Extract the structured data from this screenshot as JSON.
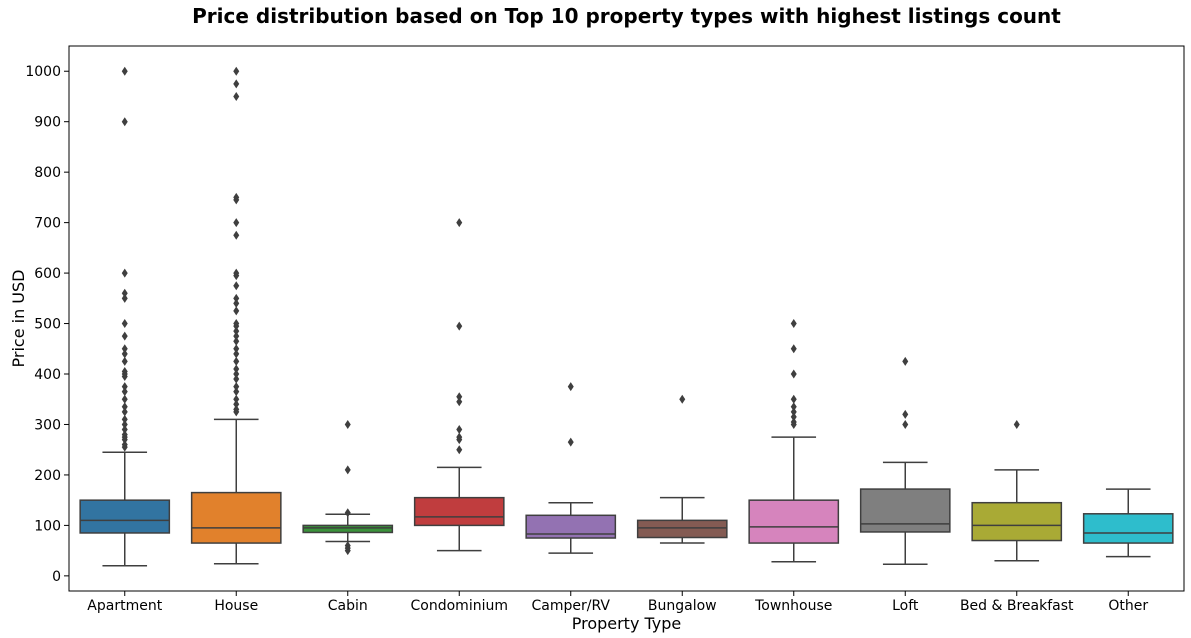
{
  "chart_data": {
    "type": "box",
    "title": "Price distribution based on Top 10 property types with highest listings count",
    "xlabel": "Property Type",
    "ylabel": "Price in USD",
    "ylim": [
      -30,
      1050
    ],
    "yticks": [
      0,
      100,
      200,
      300,
      400,
      500,
      600,
      700,
      800,
      900,
      1000
    ],
    "grid": false,
    "categories": [
      "Apartment",
      "House",
      "Cabin",
      "Condominium",
      "Camper/RV",
      "Bungalow",
      "Townhouse",
      "Loft",
      "Bed & Breakfast",
      "Other"
    ],
    "series": [
      {
        "category": "Apartment",
        "color": "#3274a1",
        "whisker_low": 20,
        "q1": 85,
        "median": 110,
        "q3": 150,
        "whisker_high": 245,
        "outliers": [
          1000,
          900,
          600,
          560,
          550,
          500,
          475,
          450,
          440,
          425,
          405,
          400,
          395,
          375,
          365,
          350,
          335,
          325,
          310,
          300,
          290,
          280,
          275,
          270,
          260,
          255
        ]
      },
      {
        "category": "House",
        "color": "#e1812c",
        "whisker_low": 24,
        "q1": 65,
        "median": 95,
        "q3": 165,
        "whisker_high": 310,
        "outliers": [
          1000,
          975,
          950,
          750,
          745,
          700,
          675,
          600,
          595,
          575,
          550,
          540,
          525,
          500,
          495,
          485,
          475,
          465,
          450,
          440,
          425,
          410,
          400,
          390,
          375,
          365,
          350,
          340,
          330,
          325
        ]
      },
      {
        "category": "Cabin",
        "color": "#3a923a",
        "whisker_low": 68,
        "q1": 86,
        "median": 95,
        "q3": 100,
        "whisker_high": 122,
        "outliers": [
          300,
          210,
          125,
          60,
          55,
          50
        ]
      },
      {
        "category": "Condominium",
        "color": "#c03d3e",
        "whisker_low": 50,
        "q1": 100,
        "median": 117,
        "q3": 155,
        "whisker_high": 215,
        "outliers": [
          700,
          495,
          355,
          345,
          290,
          275,
          270,
          250
        ]
      },
      {
        "category": "Camper/RV",
        "color": "#9372b2",
        "whisker_low": 45,
        "q1": 75,
        "median": 83,
        "q3": 120,
        "whisker_high": 145,
        "outliers": [
          375,
          265
        ]
      },
      {
        "category": "Bungalow",
        "color": "#845b53",
        "whisker_low": 65,
        "q1": 76,
        "median": 95,
        "q3": 110,
        "whisker_high": 155,
        "outliers": [
          350
        ]
      },
      {
        "category": "Townhouse",
        "color": "#d684bd",
        "whisker_low": 28,
        "q1": 65,
        "median": 97,
        "q3": 150,
        "whisker_high": 275,
        "outliers": [
          500,
          450,
          400,
          350,
          335,
          325,
          315,
          305,
          300
        ]
      },
      {
        "category": "Loft",
        "color": "#7f7f7f",
        "whisker_low": 23,
        "q1": 87,
        "median": 103,
        "q3": 172,
        "whisker_high": 225,
        "outliers": [
          425,
          320,
          300
        ]
      },
      {
        "category": "Bed & Breakfast",
        "color": "#a9aa35",
        "whisker_low": 30,
        "q1": 70,
        "median": 100,
        "q3": 145,
        "whisker_high": 210,
        "outliers": [
          300
        ]
      },
      {
        "category": "Other",
        "color": "#2ebdcc",
        "whisker_low": 38,
        "q1": 65,
        "median": 85,
        "q3": 123,
        "whisker_high": 172,
        "outliers": []
      }
    ]
  }
}
